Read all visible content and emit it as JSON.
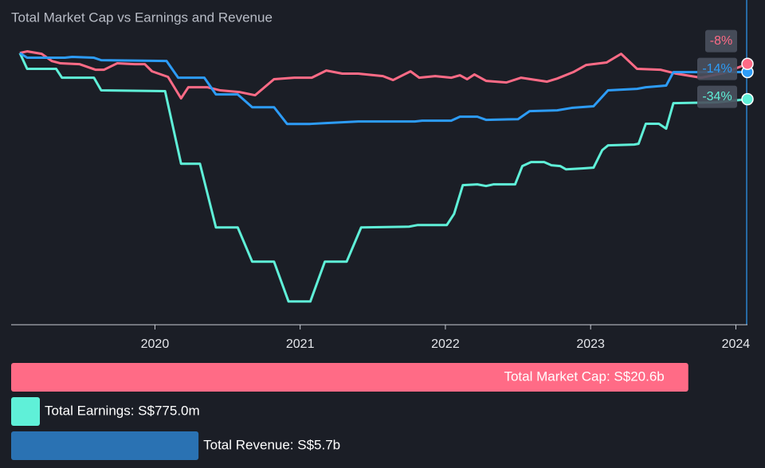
{
  "chart_data": {
    "type": "line",
    "title": "Total Market Cap vs Earnings and Revenue",
    "xlim": [
      2019.01,
      2024.08
    ],
    "xticks": [
      2020,
      2021,
      2022,
      2023,
      2024
    ],
    "ylim": [
      -200,
      39
    ],
    "series": [
      {
        "name": "Total Market Cap",
        "color": "#ff6b86",
        "end_label": "-8%",
        "x": [
          2019.07,
          2019.12,
          2019.22,
          2019.29,
          2019.35,
          2019.48,
          2019.59,
          2019.65,
          2019.74,
          2019.86,
          2019.93,
          2019.98,
          2020.09,
          2020.18,
          2020.23,
          2020.36,
          2020.45,
          2020.58,
          2020.69,
          2020.82,
          2020.96,
          2021.08,
          2021.18,
          2021.29,
          2021.4,
          2021.57,
          2021.64,
          2021.76,
          2021.82,
          2021.93,
          2022.04,
          2022.1,
          2022.15,
          2022.2,
          2022.28,
          2022.42,
          2022.52,
          2022.7,
          2022.77,
          2022.88,
          2022.97,
          2023.11,
          2023.21,
          2023.32,
          2023.48,
          2023.59,
          2023.76,
          2023.92,
          2024.08
        ],
        "values": [
          0,
          1.2,
          -0.6,
          -5.9,
          -7.6,
          -8.2,
          -12.3,
          -12.3,
          -7.6,
          -8.2,
          -8.2,
          -13.5,
          -17.6,
          -33.4,
          -25.2,
          -25.2,
          -27.5,
          -28.7,
          -31.1,
          -19.3,
          -18.2,
          -18.2,
          -12.9,
          -15.2,
          -15.2,
          -17,
          -19.9,
          -13.5,
          -18.2,
          -17,
          -18.2,
          -16.4,
          -19.3,
          -15.8,
          -20.5,
          -21.7,
          -18.2,
          -21.1,
          -18.8,
          -14.1,
          -8.8,
          -7,
          -0.6,
          -11.7,
          -12.3,
          -15.2,
          -18.2,
          -14.7,
          -8
        ]
      },
      {
        "name": "Total Earnings",
        "color": "#5ff0d8",
        "end_label": "-34%",
        "x": [
          2019.07,
          2019.12,
          2019.32,
          2019.36,
          2019.58,
          2019.63,
          2020.07,
          2020.18,
          2020.31,
          2020.42,
          2020.57,
          2020.67,
          2020.82,
          2020.92,
          2021.07,
          2021.17,
          2021.32,
          2021.42,
          2021.75,
          2021.81,
          2022.01,
          2022.06,
          2022.12,
          2022.22,
          2022.28,
          2022.33,
          2022.48,
          2022.53,
          2022.59,
          2022.68,
          2022.73,
          2022.79,
          2022.83,
          2022.94,
          2023.02,
          2023.08,
          2023.12,
          2023.3,
          2023.33,
          2023.38,
          2023.47,
          2023.52,
          2023.57,
          2023.87,
          2024.08
        ],
        "values": [
          0,
          -11.7,
          -11.7,
          -18.2,
          -18.2,
          -27.5,
          -28.1,
          -81.5,
          -81.5,
          -128.4,
          -128.4,
          -153.6,
          -153.6,
          -182.9,
          -182.9,
          -153.6,
          -153.6,
          -128.4,
          -127.8,
          -126.6,
          -126.6,
          -118.4,
          -97.3,
          -96.7,
          -97.9,
          -96.7,
          -96.7,
          -83.2,
          -80.3,
          -80.3,
          -82.6,
          -83.2,
          -85.6,
          -85,
          -84.4,
          -71.5,
          -68,
          -67.4,
          -66.8,
          -52.1,
          -52.1,
          -55.7,
          -36.9,
          -36.3,
          -34
        ]
      },
      {
        "name": "Total Revenue",
        "color": "#2d9cf7",
        "end_label": "-14%",
        "x": [
          2019.07,
          2019.12,
          2019.38,
          2019.43,
          2019.58,
          2019.63,
          2020.08,
          2020.16,
          2020.34,
          2020.42,
          2020.57,
          2020.67,
          2020.82,
          2020.91,
          2021.07,
          2021.18,
          2021.4,
          2021.79,
          2021.84,
          2022.04,
          2022.1,
          2022.22,
          2022.28,
          2022.5,
          2022.58,
          2022.77,
          2022.87,
          2023.02,
          2023.12,
          2023.32,
          2023.38,
          2023.52,
          2023.57,
          2024.08
        ],
        "values": [
          0,
          -3.5,
          -3.5,
          -2.9,
          -3.5,
          -5.3,
          -5.9,
          -18.2,
          -18.2,
          -30.5,
          -30.5,
          -39.9,
          -39.9,
          -52.2,
          -52.2,
          -51.6,
          -50.4,
          -50.4,
          -49.8,
          -49.8,
          -46.9,
          -46.9,
          -49.2,
          -48.7,
          -42.8,
          -42.2,
          -40.4,
          -39.2,
          -27.5,
          -26.4,
          -25.2,
          -24,
          -14.1,
          -14
        ]
      }
    ]
  },
  "summary": {
    "xlim": [
      0,
      22.4
    ],
    "items": [
      {
        "label": "Total Market Cap: S$20.6b",
        "value": 20.6,
        "color": "#ff6b86"
      },
      {
        "label": "Total Earnings: S$775.0m",
        "value": 0.775,
        "color": "#5ff0d8"
      },
      {
        "label": "Total Revenue: S$5.7b",
        "value": 5.7,
        "color": "#2a72b3"
      }
    ]
  }
}
